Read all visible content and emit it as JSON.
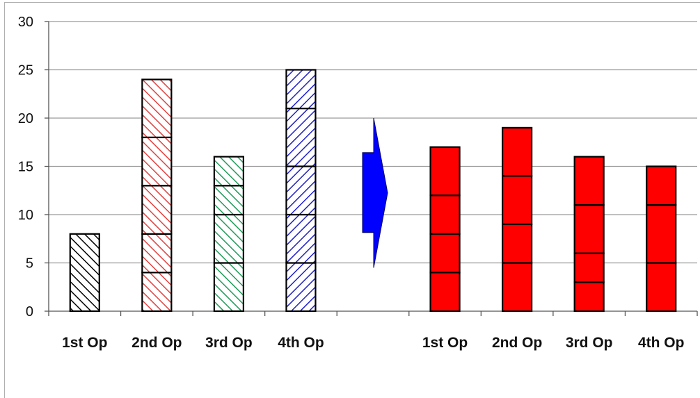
{
  "chart_data": {
    "type": "bar",
    "stacked": true,
    "ylim": [
      0,
      30
    ],
    "yticks": [
      0,
      5,
      10,
      15,
      20,
      25,
      30
    ],
    "grid": true,
    "categories": [
      "1st Op",
      "2nd Op",
      "3rd Op",
      "4th Op",
      "",
      "1st Op",
      "2nd Op",
      "3rd Op",
      "4th Op"
    ],
    "bars": [
      {
        "category": "1st Op",
        "segments": [
          8
        ],
        "fill": "hatch",
        "color": "#000000"
      },
      {
        "category": "2nd Op",
        "segments": [
          4,
          4,
          5,
          5,
          6
        ],
        "fill": "hatch",
        "color": "#e0413f"
      },
      {
        "category": "3rd Op",
        "segments": [
          5,
          5,
          3,
          3
        ],
        "fill": "hatch",
        "color": "#1f9a5a"
      },
      {
        "category": "4th Op",
        "segments": [
          5,
          5,
          5,
          6,
          4
        ],
        "fill": "hatch-reverse",
        "color": "#2020c8"
      },
      {
        "category": "",
        "segments": [],
        "fill": "none",
        "color": "#000000"
      },
      {
        "category": "1st Op",
        "segments": [
          4,
          4,
          4,
          5
        ],
        "fill": "solid",
        "color": "#ff0000"
      },
      {
        "category": "2nd Op",
        "segments": [
          5,
          4,
          5,
          5
        ],
        "fill": "solid",
        "color": "#ff0000"
      },
      {
        "category": "3rd Op",
        "segments": [
          3,
          3,
          5,
          5
        ],
        "fill": "solid",
        "color": "#ff0000"
      },
      {
        "category": "4th Op",
        "segments": [
          5,
          6,
          4
        ],
        "fill": "solid",
        "color": "#ff0000"
      }
    ],
    "arrow": {
      "color": "#0000ff",
      "direction": "right",
      "from_value": 4.5,
      "to_value": 20
    }
  }
}
